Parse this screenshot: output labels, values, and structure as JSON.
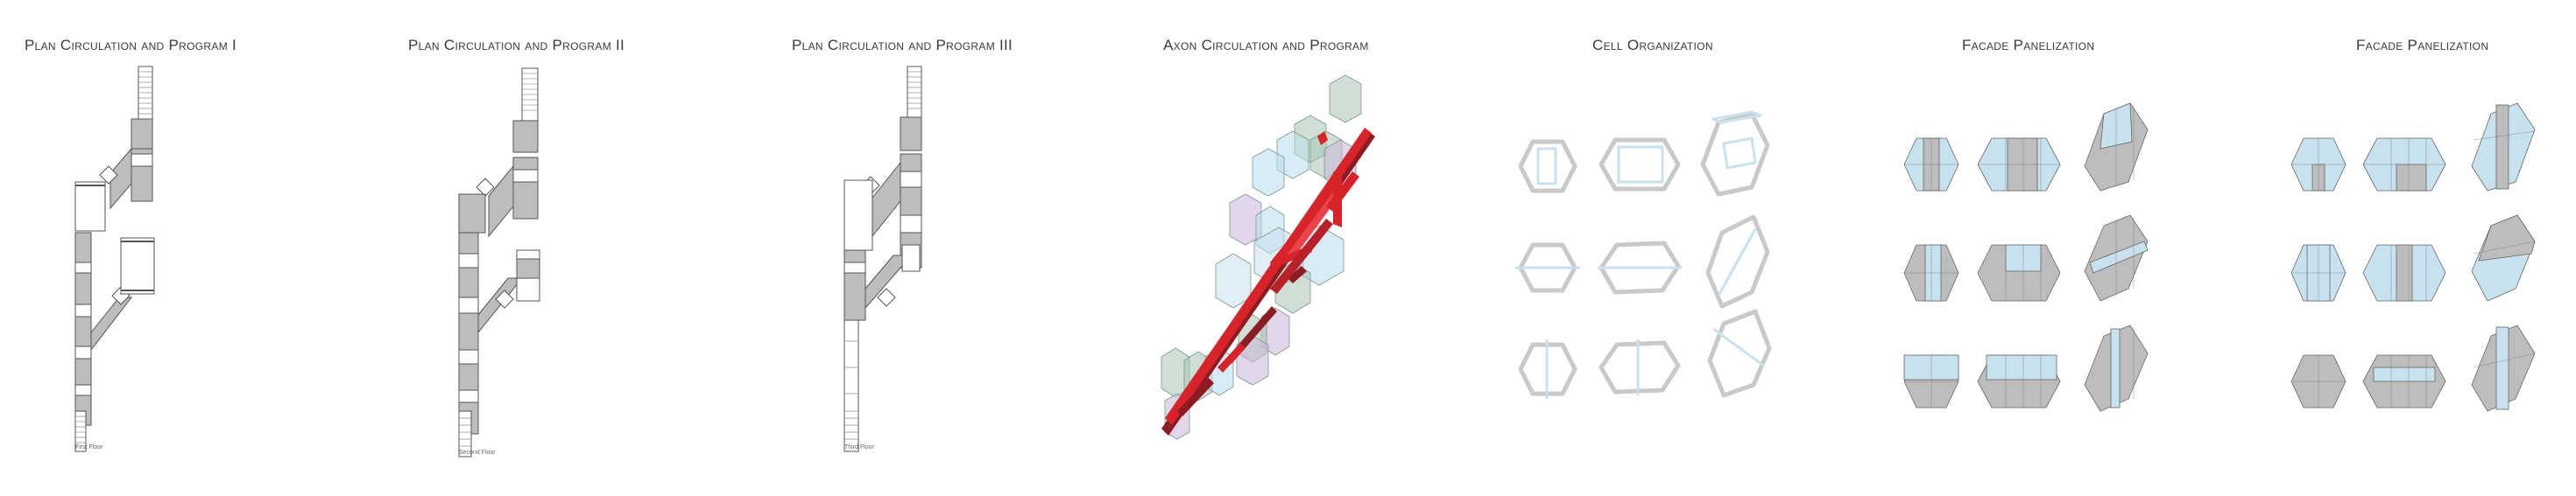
{
  "panels": [
    {
      "title": "Plan Circulation and Program I",
      "floor_label": "First Floor"
    },
    {
      "title": "Plan Circulation and Program II",
      "floor_label": "Second Floor"
    },
    {
      "title": "Plan Circulation and Program III",
      "floor_label": "Third Floor"
    },
    {
      "title": "Axon Circulation and Program"
    },
    {
      "title": "Cell Organization"
    },
    {
      "title": "Facade Panelization"
    },
    {
      "title": "Facade Panelization"
    }
  ],
  "colors": {
    "program_grey": "#bdbdbd",
    "glass_blue": "#c7e2ee",
    "circulation_red": "#d8232a",
    "circulation_dark_red": "#8c1b22",
    "translucent_green": "#a9c4b4",
    "translucent_purple": "#cbb5d9",
    "line": "#555555"
  }
}
